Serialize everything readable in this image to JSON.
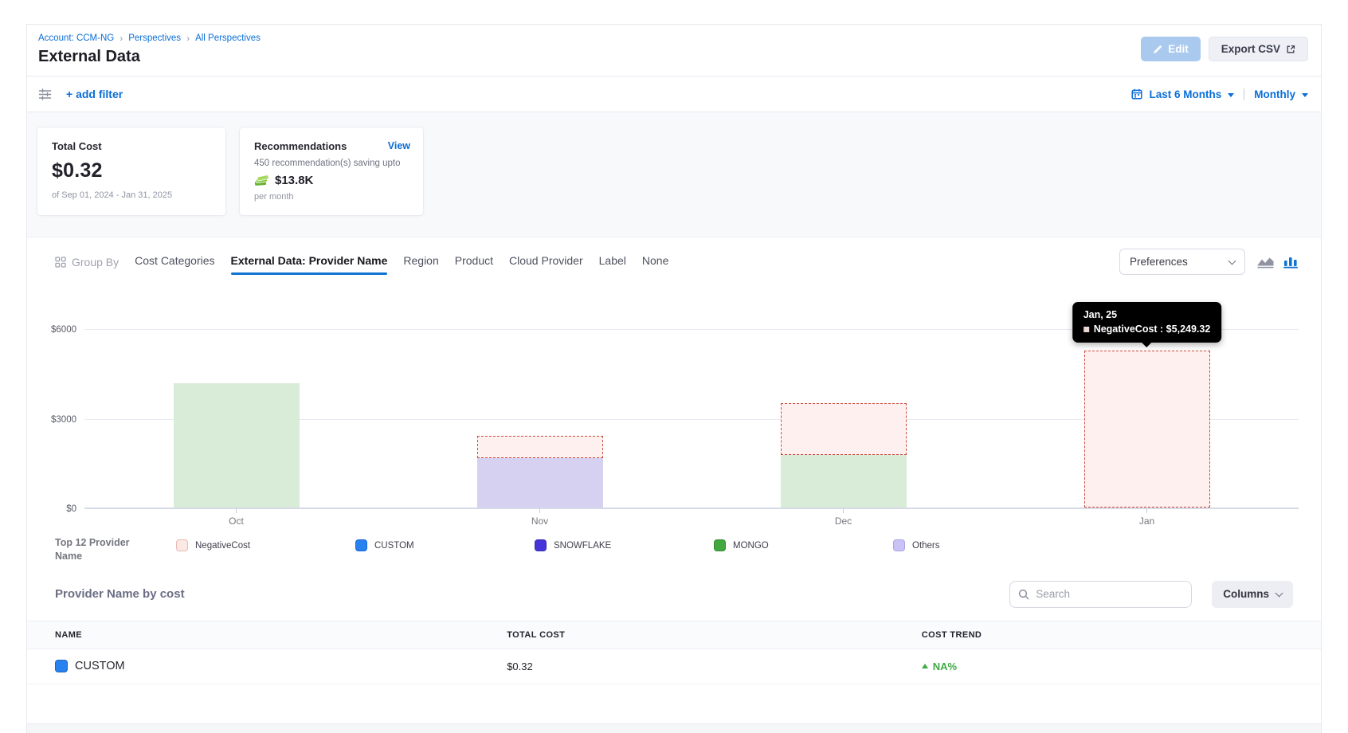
{
  "breadcrumb": {
    "items": [
      "Account: CCM-NG",
      "Perspectives",
      "All Perspectives"
    ],
    "separator": "›"
  },
  "header": {
    "title": "External Data",
    "edit_label": "Edit",
    "export_label": "Export CSV"
  },
  "filter_bar": {
    "add_filter": "+ add filter",
    "date_range": "Last 6 Months",
    "granularity": "Monthly"
  },
  "cards": {
    "total_cost": {
      "label": "Total Cost",
      "value": "$0.32",
      "period": "of Sep 01, 2024 - Jan 31, 2025"
    },
    "recommendations": {
      "label": "Recommendations",
      "view_link": "View",
      "line1": "450 recommendation(s) saving upto",
      "amount": "$13.8K",
      "line2": "per month"
    }
  },
  "group_by": {
    "label": "Group By",
    "tabs": [
      "Cost Categories",
      "External Data: Provider Name",
      "Region",
      "Product",
      "Cloud Provider",
      "Label",
      "None"
    ],
    "active": "External Data: Provider Name",
    "preferences_label": "Preferences"
  },
  "chart_data": {
    "type": "bar",
    "stacked": true,
    "categories": [
      "Oct",
      "Nov",
      "Dec",
      "Jan"
    ],
    "series": [
      {
        "name": "MONGO",
        "style": "solid",
        "color": "#42a83f",
        "fill": "#d9ecd7",
        "values": [
          4160,
          0,
          1760,
          0
        ]
      },
      {
        "name": "Others",
        "style": "solid",
        "color": "#c9c3f5",
        "fill": "#d6d1f0",
        "values": [
          0,
          1650,
          0,
          0
        ]
      },
      {
        "name": "NegativeCost",
        "style": "dashed",
        "color": "#fbe9e6",
        "fill": "#fdf0ee",
        "border": "#cc4b40",
        "values": [
          0,
          750,
          1730,
          5249.32
        ]
      }
    ],
    "yticks": [
      {
        "label": "$0",
        "value": 0
      },
      {
        "label": "$3000",
        "value": 3000
      },
      {
        "label": "$6000",
        "value": 6000
      }
    ],
    "ylim": [
      0,
      6000
    ],
    "grid": true,
    "legend_position": "bottom",
    "tooltip": {
      "title": "Jan, 25",
      "text": "NegativeCost : $5,249.32",
      "series": "NegativeCost",
      "value": "$5,249.32",
      "category_index": 3
    }
  },
  "legend": {
    "title": "Top 12 Provider Name",
    "items": [
      {
        "label": "NegativeCost",
        "color": "#fbe9e6",
        "border": "#e9b8b1"
      },
      {
        "label": "CUSTOM",
        "color": "#2782f0",
        "border": "#1565d8"
      },
      {
        "label": "SNOWFLAKE",
        "color": "#4634d9",
        "border": "#372aad"
      },
      {
        "label": "MONGO",
        "color": "#42a83f",
        "border": "#358a33"
      },
      {
        "label": "Others",
        "color": "#c9c3f5",
        "border": "#a9a1e8"
      }
    ]
  },
  "table": {
    "title": "Provider Name by cost",
    "search_placeholder": "Search",
    "columns_label": "Columns",
    "headers": [
      "NAME",
      "TOTAL COST",
      "COST TREND"
    ],
    "rows": [
      {
        "name": "CUSTOM",
        "color": "#2782f0",
        "total_cost": "$0.32",
        "trend": "NA%",
        "trend_direction": "up"
      }
    ]
  },
  "colors": {
    "accent_blue": "#0a6ed8",
    "tab_underline": "#0f74d2",
    "edit_button_bg": "#a9c9ef",
    "trend_green": "#3eaa42",
    "negative_dashed_border": "#cc4b40"
  }
}
